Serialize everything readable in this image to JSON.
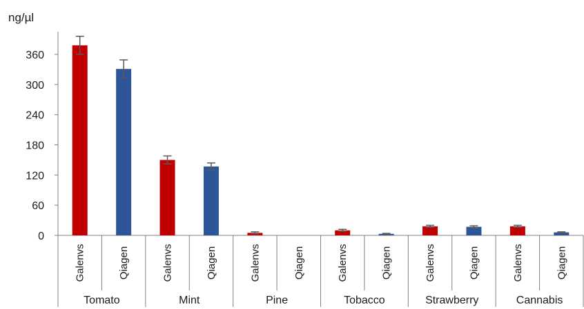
{
  "chart_data": {
    "type": "bar",
    "unit_label": "ng/µl",
    "ylim": [
      0,
      390
    ],
    "yticks": [
      0,
      60,
      120,
      180,
      240,
      300,
      360
    ],
    "grid": false,
    "legend": "none",
    "groups": [
      "Tomato",
      "Mint",
      "Pine",
      "Tobacco",
      "Strawberry",
      "Cannabis"
    ],
    "methods": [
      "Galenvs",
      "Qiagen"
    ],
    "colors": {
      "Galenvs": "#c00000",
      "Qiagen": "#2e5597",
      "error_bar": "#595959"
    },
    "series": [
      {
        "method": "Galenvs",
        "values": [
          378,
          150,
          5,
          10,
          18,
          18
        ],
        "errors": [
          18,
          8,
          2,
          2,
          2,
          2
        ]
      },
      {
        "method": "Qiagen",
        "values": [
          331,
          137,
          0,
          3,
          17,
          6
        ],
        "errors": [
          18,
          7,
          0,
          1,
          2,
          1
        ]
      }
    ]
  }
}
